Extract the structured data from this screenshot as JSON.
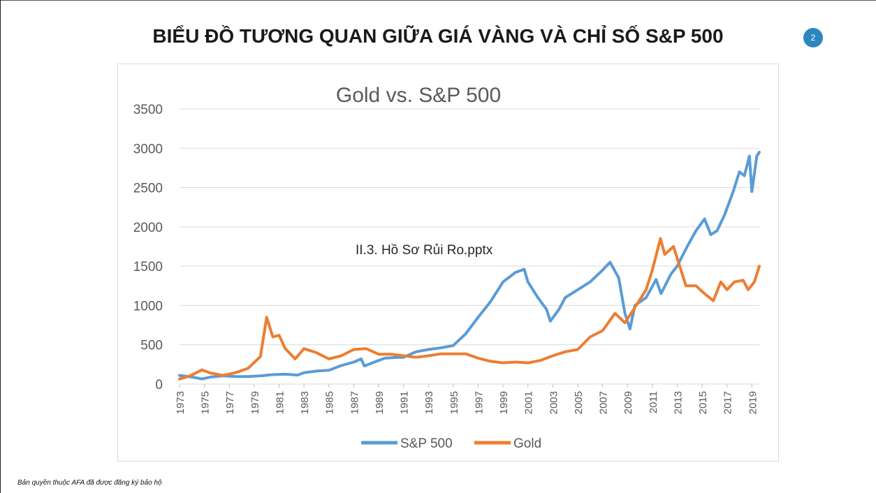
{
  "slide": {
    "title": "BIỂU ĐỒ TƯƠNG QUAN GIỮA GIÁ VÀNG VÀ CHỈ SỐ S&P 500",
    "page_number": "2",
    "footer": "Bản quyền thuộc AFA đã được đăng ký bảo hộ"
  },
  "colors": {
    "sp500": "#5b9bd5",
    "gold": "#ed7d31",
    "grid": "#d9d9d9",
    "badge": "#2e86c1"
  },
  "chart_data": {
    "type": "line",
    "title": "Gold vs. S&P 500",
    "annotation": "II.3. Hồ Sơ Rủi Ro.pptx",
    "xlabel": "",
    "ylabel": "",
    "xlim": [
      1973,
      2019.6
    ],
    "ylim": [
      0,
      3500
    ],
    "y_ticks": [
      0,
      500,
      1000,
      1500,
      2000,
      2500,
      3000,
      3500
    ],
    "x_tick_labels": [
      "1973",
      "1975",
      "1977",
      "1979",
      "1981",
      "1983",
      "1985",
      "1987",
      "1989",
      "1991",
      "1993",
      "1995",
      "1997",
      "1999",
      "2001",
      "2003",
      "2005",
      "2007",
      "2009",
      "2011",
      "2013",
      "2015",
      "2017",
      "2019"
    ],
    "grid": "horizontal",
    "legend_position": "bottom",
    "series": [
      {
        "name": "S&P 500",
        "color": "#5b9bd5",
        "points": [
          [
            1973.0,
            110
          ],
          [
            1974.0,
            90
          ],
          [
            1974.8,
            65
          ],
          [
            1975.5,
            90
          ],
          [
            1976.5,
            105
          ],
          [
            1977.5,
            95
          ],
          [
            1978.5,
            95
          ],
          [
            1979.5,
            105
          ],
          [
            1980.5,
            120
          ],
          [
            1981.5,
            125
          ],
          [
            1982.5,
            115
          ],
          [
            1983.0,
            145
          ],
          [
            1984.0,
            165
          ],
          [
            1985.0,
            175
          ],
          [
            1986.0,
            235
          ],
          [
            1987.0,
            280
          ],
          [
            1987.6,
            320
          ],
          [
            1987.85,
            230
          ],
          [
            1988.5,
            270
          ],
          [
            1989.5,
            330
          ],
          [
            1990.5,
            340
          ],
          [
            1991.0,
            340
          ],
          [
            1992.0,
            410
          ],
          [
            1993.0,
            440
          ],
          [
            1994.0,
            460
          ],
          [
            1995.0,
            490
          ],
          [
            1996.0,
            640
          ],
          [
            1997.0,
            850
          ],
          [
            1998.0,
            1050
          ],
          [
            1999.0,
            1300
          ],
          [
            2000.0,
            1420
          ],
          [
            2000.7,
            1460
          ],
          [
            2001.0,
            1300
          ],
          [
            2001.8,
            1100
          ],
          [
            2002.5,
            950
          ],
          [
            2002.8,
            800
          ],
          [
            2003.5,
            950
          ],
          [
            2004.0,
            1100
          ],
          [
            2005.0,
            1200
          ],
          [
            2006.0,
            1300
          ],
          [
            2007.0,
            1450
          ],
          [
            2007.6,
            1550
          ],
          [
            2008.3,
            1350
          ],
          [
            2008.8,
            900
          ],
          [
            2009.2,
            700
          ],
          [
            2009.6,
            1000
          ],
          [
            2010.5,
            1100
          ],
          [
            2011.3,
            1330
          ],
          [
            2011.7,
            1150
          ],
          [
            2012.5,
            1400
          ],
          [
            2013.0,
            1500
          ],
          [
            2013.8,
            1750
          ],
          [
            2014.5,
            1950
          ],
          [
            2015.2,
            2100
          ],
          [
            2015.7,
            1900
          ],
          [
            2016.2,
            1950
          ],
          [
            2016.8,
            2150
          ],
          [
            2017.5,
            2450
          ],
          [
            2018.0,
            2700
          ],
          [
            2018.4,
            2650
          ],
          [
            2018.8,
            2900
          ],
          [
            2019.0,
            2450
          ],
          [
            2019.4,
            2900
          ],
          [
            2019.6,
            2950
          ]
        ]
      },
      {
        "name": "Gold",
        "color": "#ed7d31",
        "points": [
          [
            1973.0,
            65
          ],
          [
            1973.8,
            100
          ],
          [
            1974.8,
            180
          ],
          [
            1975.5,
            140
          ],
          [
            1976.5,
            110
          ],
          [
            1977.5,
            145
          ],
          [
            1978.5,
            200
          ],
          [
            1979.5,
            350
          ],
          [
            1980.0,
            850
          ],
          [
            1980.5,
            600
          ],
          [
            1981.0,
            620
          ],
          [
            1981.5,
            450
          ],
          [
            1982.3,
            320
          ],
          [
            1983.0,
            450
          ],
          [
            1984.0,
            400
          ],
          [
            1985.0,
            320
          ],
          [
            1986.0,
            360
          ],
          [
            1987.0,
            440
          ],
          [
            1988.0,
            450
          ],
          [
            1989.0,
            380
          ],
          [
            1990.0,
            380
          ],
          [
            1991.0,
            360
          ],
          [
            1992.0,
            340
          ],
          [
            1993.0,
            360
          ],
          [
            1994.0,
            385
          ],
          [
            1995.0,
            385
          ],
          [
            1996.0,
            385
          ],
          [
            1997.0,
            330
          ],
          [
            1998.0,
            290
          ],
          [
            1999.0,
            270
          ],
          [
            2000.0,
            280
          ],
          [
            2001.0,
            270
          ],
          [
            2002.0,
            300
          ],
          [
            2003.0,
            360
          ],
          [
            2004.0,
            410
          ],
          [
            2005.0,
            440
          ],
          [
            2006.0,
            600
          ],
          [
            2007.0,
            680
          ],
          [
            2008.0,
            900
          ],
          [
            2008.8,
            780
          ],
          [
            2009.5,
            950
          ],
          [
            2010.5,
            1200
          ],
          [
            2011.0,
            1450
          ],
          [
            2011.65,
            1850
          ],
          [
            2012.0,
            1650
          ],
          [
            2012.7,
            1750
          ],
          [
            2013.3,
            1450
          ],
          [
            2013.7,
            1250
          ],
          [
            2014.5,
            1250
          ],
          [
            2015.2,
            1150
          ],
          [
            2015.9,
            1060
          ],
          [
            2016.5,
            1300
          ],
          [
            2017.0,
            1200
          ],
          [
            2017.6,
            1300
          ],
          [
            2018.3,
            1320
          ],
          [
            2018.7,
            1200
          ],
          [
            2019.2,
            1300
          ],
          [
            2019.6,
            1500
          ]
        ]
      }
    ]
  }
}
